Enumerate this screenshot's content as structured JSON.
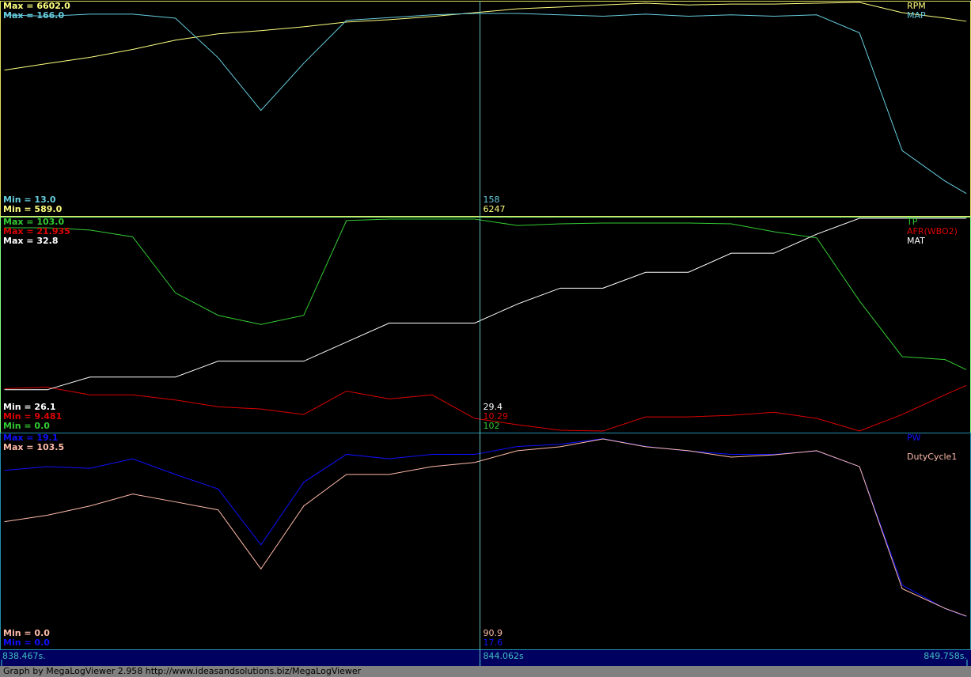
{
  "chart_data": [
    {
      "type": "line",
      "x": [
        838.5,
        839,
        839.5,
        840,
        840.5,
        841,
        841.5,
        842,
        842.5,
        843,
        843.5,
        844,
        844.5,
        845,
        845.5,
        846,
        846.5,
        847,
        847.5,
        848,
        848.5,
        849,
        849.5,
        849.75
      ],
      "border": "#e0e060",
      "series": [
        {
          "name": "RPM",
          "color": "#ffff80",
          "ylim": [
            589,
            6602
          ],
          "max_label": "Max = 6602.0",
          "min_label": "Min = 589.0",
          "cursor_value": 6247,
          "values": [
            4680,
            4865,
            5043,
            5266,
            5530,
            5710,
            5800,
            5910,
            6045,
            6110,
            6200,
            6310,
            6420,
            6470,
            6530,
            6580,
            6530,
            6555,
            6555,
            6580,
            6602,
            6310,
            6155,
            6065
          ]
        },
        {
          "name": "MAP",
          "color": "#66ccdd",
          "ylim": [
            13,
            166
          ],
          "max_label": "Max = 166.0",
          "min_label": "Min = 13.0",
          "cursor_value": 158,
          "values": [
            157,
            156,
            157.5,
            157.5,
            154.6,
            126,
            88,
            122,
            153,
            155,
            157,
            158,
            158,
            157,
            156,
            157.5,
            156,
            157,
            156,
            157,
            144,
            59,
            37,
            28
          ]
        }
      ]
    },
    {
      "type": "line",
      "x": [
        838.5,
        839,
        839.5,
        840,
        840.5,
        841,
        841.5,
        842,
        842.5,
        843,
        843.5,
        844,
        844.5,
        845,
        845.5,
        846,
        846.5,
        847,
        847.5,
        848,
        848.5,
        849,
        849.5,
        849.75
      ],
      "border": "#80ff80",
      "series": [
        {
          "name": "TP",
          "color": "#33cc33",
          "ylim": [
            0,
            103
          ],
          "max_label": "Max = 103.0",
          "min_label": "Min = 0.0",
          "cursor_value": 102,
          "values": [
            98.4,
            98.4,
            97.3,
            94,
            66.9,
            56,
            51.6,
            56,
            101.9,
            102.6,
            102.6,
            102.6,
            99.5,
            100.3,
            100.7,
            100.7,
            100.7,
            100.3,
            96.5,
            93.5,
            63,
            36,
            34.6,
            29.7
          ]
        },
        {
          "name": "AFR(WBO2)",
          "color": "#dd0000",
          "ylim": [
            9.481,
            21.935
          ],
          "max_label": "Max = 21.935",
          "min_label": "Min = 9.481",
          "cursor_value": 10.29,
          "values": [
            11.96,
            12.05,
            11.6,
            11.6,
            11.3,
            10.9,
            10.77,
            10.45,
            11.82,
            11.36,
            11.6,
            10.22,
            9.85,
            9.53,
            9.48,
            10.31,
            10.31,
            10.4,
            10.58,
            10.22,
            9.48,
            10.45,
            11.6,
            12.15
          ]
        },
        {
          "name": "MAT",
          "color": "#ffffff",
          "ylim": [
            26.1,
            32.8
          ],
          "max_label": "Max = 32.8",
          "min_label": "Min = 26.1",
          "cursor_value": 29.4,
          "values": [
            27.4,
            27.4,
            27.8,
            27.8,
            27.8,
            28.3,
            28.3,
            28.3,
            28.9,
            29.5,
            29.5,
            29.5,
            30.1,
            30.6,
            30.6,
            31.1,
            31.1,
            31.7,
            31.7,
            32.3,
            32.8,
            32.8,
            32.8,
            32.8
          ]
        }
      ]
    },
    {
      "type": "line",
      "x": [
        838.5,
        839,
        839.5,
        840,
        840.5,
        841,
        841.5,
        842,
        842.5,
        843,
        843.5,
        844,
        844.5,
        845,
        845.5,
        846,
        846.5,
        847,
        847.5,
        848,
        848.5,
        849,
        849.5,
        849.75
      ],
      "border": "#2090b0",
      "series": [
        {
          "name": "PW",
          "color": "#1010ff",
          "ylim": [
            0,
            19.1
          ],
          "max_label": "Max = 19.1",
          "min_label": "Min = 0.0",
          "cursor_value": 17.6,
          "values": [
            15.86,
            16.2,
            16.05,
            16.9,
            15.5,
            14.2,
            9.2,
            14.8,
            17.3,
            16.9,
            17.3,
            17.3,
            18,
            18.2,
            18.7,
            18,
            17.6,
            17.3,
            17.3,
            17.6,
            16.2,
            5.6,
            3.5,
            2.8
          ]
        },
        {
          "name": "DutyCycle1",
          "color": "#ffbbaa",
          "ylim": [
            0,
            103.5
          ],
          "max_label": "Max = 103.5",
          "min_label": "Min = 0.0",
          "cursor_value": 90.9,
          "values": [
            61.1,
            64.2,
            68.7,
            74.5,
            70.7,
            66.8,
            38.2,
            68.7,
            84,
            84,
            87.8,
            89.8,
            95.5,
            97.4,
            101.2,
            97.4,
            95.5,
            92.4,
            93.5,
            95.5,
            87.8,
            28.6,
            19.1,
            15.3
          ]
        }
      ]
    }
  ],
  "time_axis": {
    "xlim": [
      838.467,
      849.758
    ],
    "xticks": [
      {
        "value": 838.467,
        "label": "838.467s."
      },
      {
        "value": 844.062,
        "label": "844.062s"
      },
      {
        "value": 849.758,
        "label": "849.758s."
      }
    ]
  },
  "footer": "Graph by MegaLogViewer 2.958 http://www.ideasandsolutions.biz/MegaLogViewer"
}
